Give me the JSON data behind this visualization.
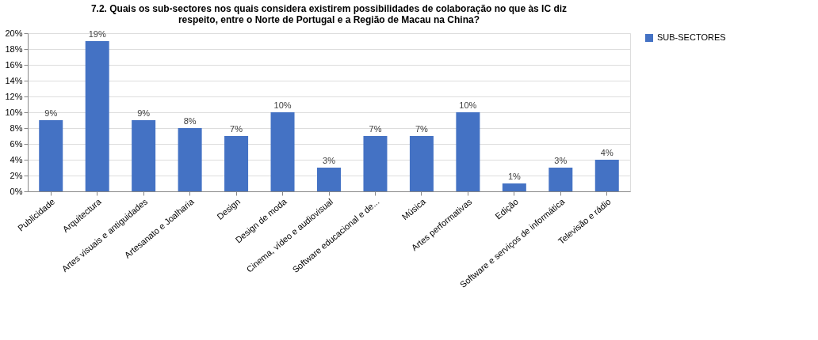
{
  "chart_data": {
    "type": "bar",
    "title": "7.2. Quais os sub-sectores nos quais considera existirem possibilidades de colaboração no que às IC diz\nrespeito, entre o Norte de Portugal e a Região de Macau na China?",
    "categories": [
      "Publicidade",
      "Arquitectura",
      "Artes visuais e antiguidades",
      "Artesanato e Joalharia",
      "Design",
      "Design de moda",
      "Cinema, vídeo e audiovisual",
      "Software educacional e de...",
      "Música",
      "Artes performativas",
      "Edição",
      "Software e serviços de informática",
      "Televisão e rádio"
    ],
    "series": [
      {
        "name": "SUB-SECTORES",
        "color": "#4472c4",
        "values": [
          9,
          19,
          9,
          8,
          7,
          10,
          3,
          7,
          7,
          10,
          1,
          3,
          4
        ],
        "value_labels": [
          "9%",
          "19%",
          "9%",
          "8%",
          "7%",
          "10%",
          "3%",
          "7%",
          "7%",
          "10%",
          "1%",
          "3%",
          "4%"
        ]
      }
    ],
    "ylim": [
      0,
      20
    ],
    "yticks": [
      {
        "value": 0,
        "label": "0%"
      },
      {
        "value": 2,
        "label": "2%"
      },
      {
        "value": 4,
        "label": "4%"
      },
      {
        "value": 6,
        "label": "6%"
      },
      {
        "value": 8,
        "label": "8%"
      },
      {
        "value": 10,
        "label": "10%"
      },
      {
        "value": 12,
        "label": "12%"
      },
      {
        "value": 14,
        "label": "14%"
      },
      {
        "value": 16,
        "label": "16%"
      },
      {
        "value": 18,
        "label": "18%"
      },
      {
        "value": 20,
        "label": "20%"
      }
    ],
    "grid": "y",
    "legend": "right"
  }
}
